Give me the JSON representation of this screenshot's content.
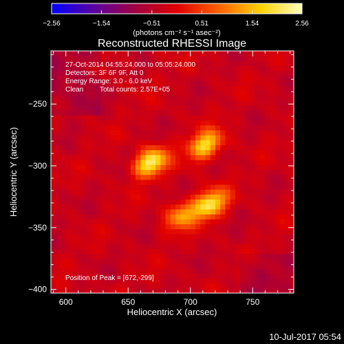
{
  "chart_data": {
    "type": "heatmap",
    "title": "Reconstructed RHESSI Image",
    "xlabel": "Heliocentric X (arcsec)",
    "ylabel": "Heliocentric Y (arcsec)",
    "xlim": [
      588,
      783
    ],
    "ylim": [
      -403,
      -207
    ],
    "x_ticks": [
      600,
      650,
      700,
      750
    ],
    "y_ticks": [
      -250,
      -300,
      -350,
      -400
    ],
    "x_tick_labels": [
      "600",
      "650",
      "700",
      "750"
    ],
    "y_tick_labels": [
      "−250",
      "−300",
      "−350",
      "−400"
    ],
    "colorbar": {
      "label": "(photons cm⁻² s⁻¹ asec⁻²)",
      "range": [
        -2.56,
        2.56
      ],
      "ticks": [
        -2.56,
        -1.54,
        -0.51,
        0.51,
        1.54,
        2.56
      ],
      "tick_labels": [
        "−2.56",
        "−1.54",
        "−0.51",
        "0.51",
        "1.54",
        "2.56"
      ],
      "colormap": [
        "#0000ff",
        "#5a00a0",
        "#a00040",
        "#e00000",
        "#ff6000",
        "#ffd000",
        "#ffffc0"
      ]
    },
    "sources": [
      {
        "x": 668,
        "y": -297,
        "peak": 2.56
      },
      {
        "x": 712,
        "y": -283,
        "peak": 2.25
      },
      {
        "x": 716,
        "y": -331,
        "peak": 2.35
      },
      {
        "x": 693,
        "y": -340,
        "peak": 1.6
      }
    ],
    "annotations": {
      "time_range": "27-Oct-2014 04:55:24.000 to 05:05:24.000",
      "detectors": "Detectors: 3F 6F 9F, Att 0",
      "energy": "Energy Range: 3.0 - 6.0 keV",
      "method": "Clean",
      "total_counts": "Total counts: 2.57E+05",
      "peak_position": "Position of Peak = [672,-299]"
    },
    "footer_date": "10-Jul-2017 05:54"
  }
}
